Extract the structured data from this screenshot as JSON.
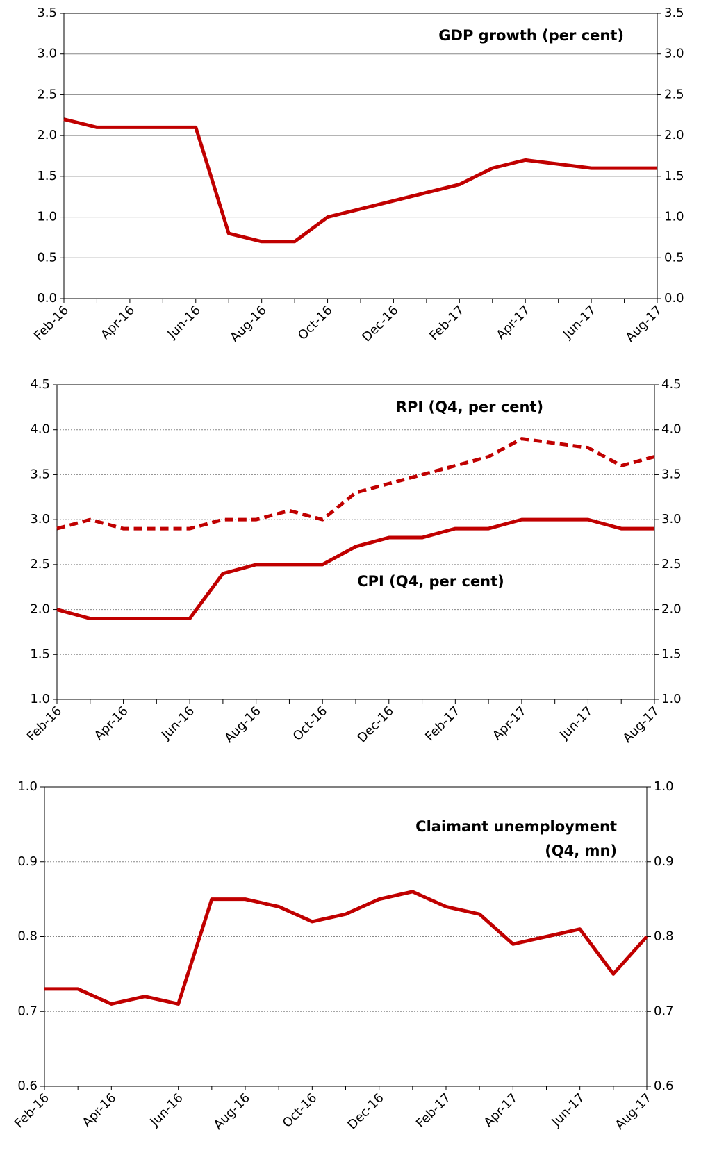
{
  "chart_data": [
    {
      "type": "line",
      "title": "GDP growth (per cent)",
      "categories": [
        "Feb-16",
        null,
        "Apr-16",
        null,
        "Jun-16",
        null,
        "Aug-16",
        null,
        "Oct-16",
        null,
        "Dec-16",
        null,
        "Feb-17",
        null,
        "Apr-17",
        null,
        "Jun-17",
        null,
        "Aug-17"
      ],
      "series": [
        {
          "color": "#c00000",
          "dash": "solid",
          "values": [
            2.2,
            2.1,
            2.1,
            2.1,
            2.1,
            0.8,
            0.7,
            0.7,
            1.0,
            1.1,
            1.2,
            1.3,
            1.4,
            1.6,
            1.7,
            1.65,
            1.6,
            1.6,
            1.6
          ]
        }
      ],
      "ylim": [
        0,
        3.5
      ],
      "yticks": [
        {
          "value": 0,
          "label": "0.0"
        },
        0.5,
        {
          "value": 1,
          "label": "1.0"
        },
        1.5,
        {
          "value": 2,
          "label": "2.0"
        },
        2.5,
        {
          "value": 3,
          "label": "3.0"
        },
        3.5
      ],
      "grid": true,
      "grid_style": "solid"
    },
    {
      "type": "line",
      "categories": [
        "Feb-16",
        null,
        "Apr-16",
        null,
        "Jun-16",
        null,
        "Aug-16",
        null,
        "Oct-16",
        null,
        "Dec-16",
        null,
        "Feb-17",
        null,
        "Apr-17",
        null,
        "Jun-17",
        null,
        "Aug-17"
      ],
      "series": [
        {
          "name": "RPI (Q4, per cent)",
          "color": "#c00000",
          "dash": "dashed",
          "values": [
            2.9,
            3.0,
            2.9,
            2.9,
            2.9,
            3.0,
            3.0,
            3.1,
            3.0,
            3.3,
            3.4,
            3.5,
            3.6,
            3.7,
            3.9,
            3.85,
            3.8,
            3.6,
            3.7
          ]
        },
        {
          "name": "CPI (Q4, per cent)",
          "color": "#c00000",
          "dash": "solid",
          "values": [
            2.0,
            1.9,
            1.9,
            1.9,
            1.9,
            2.4,
            2.5,
            2.5,
            2.5,
            2.7,
            2.8,
            2.8,
            2.9,
            2.9,
            3.0,
            3.0,
            3.0,
            2.9,
            2.9
          ]
        }
      ],
      "ylim": [
        1,
        4.5
      ],
      "yticks": [
        {
          "value": 1,
          "label": "1.0"
        },
        1.5,
        {
          "value": 2,
          "label": "2.0"
        },
        2.5,
        {
          "value": 3,
          "label": "3.0"
        },
        3.5,
        {
          "value": 4,
          "label": "4.0"
        },
        4.5
      ],
      "grid": true,
      "grid_style": "dotted"
    },
    {
      "type": "line",
      "title": [
        "Claimant unemployment",
        "(Q4, mn)"
      ],
      "categories": [
        "Feb-16",
        null,
        "Apr-16",
        null,
        "Jun-16",
        null,
        "Aug-16",
        null,
        "Oct-16",
        null,
        "Dec-16",
        null,
        "Feb-17",
        null,
        "Apr-17",
        null,
        "Jun-17",
        null,
        "Aug-17"
      ],
      "series": [
        {
          "color": "#c00000",
          "dash": "solid",
          "values": [
            0.73,
            0.73,
            0.71,
            0.72,
            0.71,
            0.85,
            0.85,
            0.84,
            0.82,
            0.83,
            0.85,
            0.86,
            0.84,
            0.83,
            0.79,
            0.8,
            0.81,
            0.75,
            0.8
          ]
        }
      ],
      "ylim": [
        0.6,
        1
      ],
      "yticks": [
        0.6,
        0.7,
        0.8,
        0.9,
        {
          "value": 1,
          "label": "1.0"
        }
      ],
      "grid": true,
      "grid_style": "dotted"
    }
  ]
}
